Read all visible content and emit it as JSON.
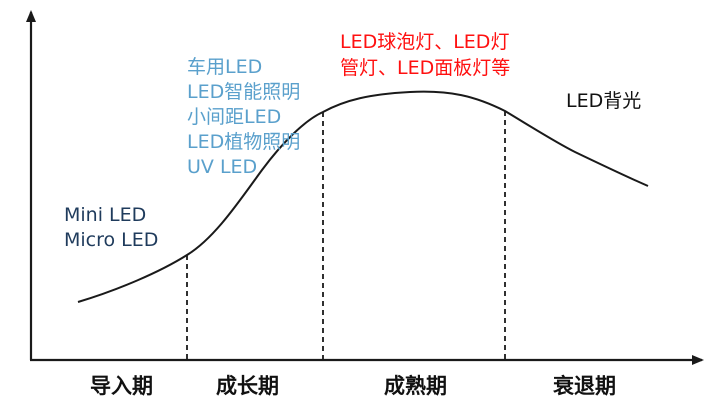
{
  "diagram": {
    "phases": [
      "导入期",
      "成长期",
      "成熟期",
      "衰退期"
    ],
    "intro_labels": [
      "Mini LED",
      "Micro LED"
    ],
    "growth_labels": [
      "车用LED",
      "LED智能照明",
      "小间距LED",
      "LED植物照明",
      "UV LED"
    ],
    "mature_labels": [
      "LED球泡灯、LED灯",
      "管灯、LED面板灯等"
    ],
    "decline_labels": [
      "LED背光"
    ],
    "colors": {
      "curve": "#1a1a1a",
      "intro_text": "#1f3b5c",
      "growth_text": "#5aa0cc",
      "mature_text": "#ff1010",
      "decline_text": "#111111"
    }
  }
}
